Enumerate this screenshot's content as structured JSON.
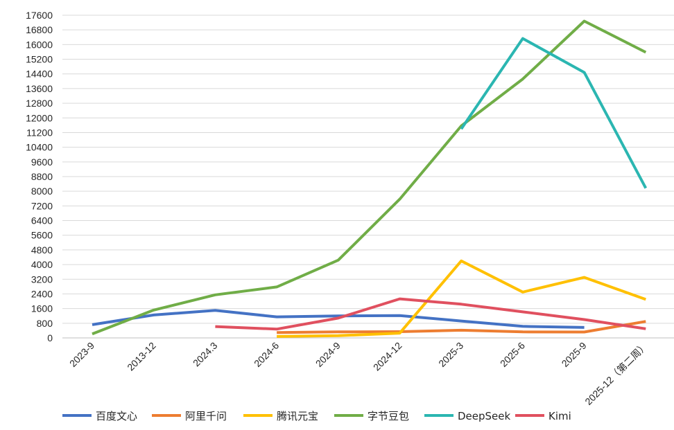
{
  "chart_data": {
    "type": "line",
    "categories": [
      "2023-9",
      "2013-12",
      "2024.3",
      "2024-6",
      "2024-9",
      "2024-12",
      "2025-3",
      "2025-6",
      "2025-9",
      "2025-12（第二周）"
    ],
    "ylim": [
      0,
      17600
    ],
    "yticks": [
      0,
      800,
      1600,
      2400,
      3200,
      4000,
      4800,
      5600,
      6400,
      7200,
      8000,
      8800,
      9600,
      10400,
      11200,
      12000,
      12800,
      13600,
      14400,
      15200,
      16000,
      16800,
      17600
    ],
    "grid": true,
    "legend_position": "bottom",
    "series": [
      {
        "name": "百度文心",
        "color": "#4472C4",
        "values": [
          720,
          1250,
          1500,
          1150,
          1200,
          1220,
          920,
          630,
          570,
          null
        ]
      },
      {
        "name": "阿里千问",
        "color": "#ED7D31",
        "values": [
          null,
          null,
          null,
          290,
          330,
          340,
          420,
          330,
          320,
          900
        ]
      },
      {
        "name": "腾讯元宝",
        "color": "#FFC000",
        "values": [
          null,
          null,
          null,
          80,
          120,
          260,
          4200,
          2500,
          3300,
          2100
        ]
      },
      {
        "name": "字节豆包",
        "color": "#70AD47",
        "values": [
          220,
          1520,
          2350,
          2780,
          4240,
          7570,
          11560,
          14120,
          17280,
          15580
        ]
      },
      {
        "name": "DeepSeek",
        "color": "#2BB6B1",
        "values": [
          null,
          null,
          null,
          null,
          null,
          null,
          11400,
          16330,
          14480,
          8170
        ]
      },
      {
        "name": "Kimi",
        "color": "#E0505F",
        "values": [
          null,
          null,
          620,
          480,
          1080,
          2130,
          1840,
          1420,
          1000,
          500
        ]
      }
    ]
  }
}
